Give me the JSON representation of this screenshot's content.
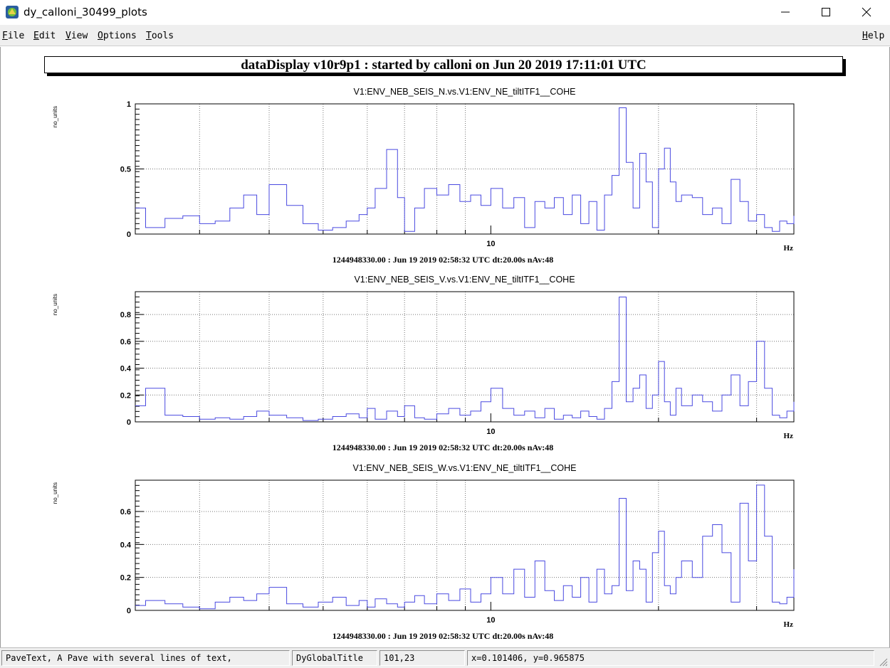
{
  "window": {
    "title": "dy_calloni_30499_plots",
    "controls": {
      "minimize": "minimize-icon",
      "maximize": "maximize-icon",
      "close": "close-icon"
    }
  },
  "menu": {
    "items": [
      "File",
      "Edit",
      "View",
      "Options",
      "Tools"
    ],
    "help": "Help"
  },
  "global_title": "dataDisplay v10r9p1 : started by calloni on Jun 20 2019 17:11:01 UTC",
  "plots": [
    {
      "title": "V1:ENV_NEB_SEIS_N.vs.V1:ENV_NE_tiltITF1__COHE",
      "ylabel": "no_units",
      "xunit": "Hz",
      "yticks": [
        {
          "v": 0,
          "label": "0"
        },
        {
          "v": 0.5,
          "label": "0.5"
        },
        {
          "v": 1,
          "label": "1"
        }
      ],
      "ymax": 1.0,
      "footer": "1244948330.00 : Jun 19 2019 02:58:32 UTC dt:20.00s nAv:48"
    },
    {
      "title": "V1:ENV_NEB_SEIS_V.vs.V1:ENV_NE_tiltITF1__COHE",
      "ylabel": "no_units",
      "xunit": "Hz",
      "yticks": [
        {
          "v": 0,
          "label": "0"
        },
        {
          "v": 0.2,
          "label": "0.2"
        },
        {
          "v": 0.4,
          "label": "0.4"
        },
        {
          "v": 0.6,
          "label": "0.6"
        },
        {
          "v": 0.8,
          "label": "0.8"
        }
      ],
      "ymax": 0.97,
      "footer": "1244948330.00 : Jun 19 2019 02:58:32 UTC dt:20.00s nAv:48"
    },
    {
      "title": "V1:ENV_NEB_SEIS_W.vs.V1:ENV_NE_tiltITF1__COHE",
      "ylabel": "no_units",
      "xunit": "Hz",
      "yticks": [
        {
          "v": 0,
          "label": "0"
        },
        {
          "v": 0.2,
          "label": "0.2"
        },
        {
          "v": 0.4,
          "label": "0.4"
        },
        {
          "v": 0.6,
          "label": "0.6"
        }
      ],
      "ymax": 0.79,
      "footer": "1244948330.00 : Jun 19 2019 02:58:32 UTC dt:20.00s nAv:48"
    }
  ],
  "xaxis": {
    "min": 2.3,
    "max": 35,
    "scale": "log",
    "labeled_tick": "10",
    "grid": true
  },
  "line_color": "#4a4ae0",
  "chart_data": [
    {
      "type": "line",
      "title": "V1:ENV_NEB_SEIS_N.vs.V1:ENV_NE_tiltITF1__COHE",
      "xlabel": "Hz",
      "ylabel": "no_units",
      "xscale": "log",
      "xlim": [
        2.3,
        35
      ],
      "ylim": [
        0,
        1.0
      ],
      "series": [
        {
          "x": [
            2.3,
            2.4,
            2.6,
            2.8,
            3.0,
            3.2,
            3.4,
            3.6,
            3.8,
            4.0,
            4.3,
            4.6,
            4.9,
            5.2,
            5.5,
            5.8,
            6.0,
            6.2,
            6.5,
            6.8,
            7.0,
            7.3,
            7.6,
            8.0,
            8.4,
            8.8,
            9.2,
            9.6,
            10.0,
            10.5,
            11,
            11.5,
            12,
            12.5,
            13,
            13.5,
            14,
            14.5,
            15,
            15.5,
            16,
            16.5,
            17,
            17.5,
            18,
            18.5,
            19,
            19.5,
            20,
            20.5,
            21,
            21.5,
            22,
            23,
            24,
            25,
            26,
            27,
            28,
            29,
            30,
            31,
            32,
            33,
            34,
            35
          ],
          "y": [
            0.2,
            0.05,
            0.12,
            0.14,
            0.08,
            0.1,
            0.2,
            0.3,
            0.15,
            0.38,
            0.22,
            0.08,
            0.03,
            0.05,
            0.1,
            0.15,
            0.2,
            0.35,
            0.65,
            0.28,
            0.02,
            0.2,
            0.35,
            0.3,
            0.38,
            0.25,
            0.3,
            0.22,
            0.35,
            0.2,
            0.28,
            0.05,
            0.25,
            0.2,
            0.28,
            0.15,
            0.3,
            0.08,
            0.25,
            0.03,
            0.3,
            0.45,
            0.97,
            0.55,
            0.2,
            0.62,
            0.4,
            0.05,
            0.5,
            0.66,
            0.4,
            0.25,
            0.3,
            0.28,
            0.15,
            0.2,
            0.08,
            0.42,
            0.25,
            0.1,
            0.15,
            0.05,
            0.02,
            0.1,
            0.08,
            0.14
          ]
        }
      ]
    },
    {
      "type": "line",
      "title": "V1:ENV_NEB_SEIS_V.vs.V1:ENV_NE_tiltITF1__COHE",
      "xlabel": "Hz",
      "ylabel": "no_units",
      "xscale": "log",
      "xlim": [
        2.3,
        35
      ],
      "ylim": [
        0,
        0.97
      ],
      "series": [
        {
          "x": [
            2.3,
            2.4,
            2.6,
            2.8,
            3.0,
            3.2,
            3.4,
            3.6,
            3.8,
            4.0,
            4.3,
            4.6,
            4.9,
            5.2,
            5.5,
            5.8,
            6.0,
            6.2,
            6.5,
            6.8,
            7.0,
            7.3,
            7.6,
            8.0,
            8.4,
            8.8,
            9.2,
            9.6,
            10.0,
            10.5,
            11,
            11.5,
            12,
            12.5,
            13,
            13.5,
            14,
            14.5,
            15,
            15.5,
            16,
            16.5,
            17,
            17.5,
            18,
            18.5,
            19,
            19.5,
            20,
            20.5,
            21,
            21.5,
            22,
            23,
            24,
            25,
            26,
            27,
            28,
            29,
            30,
            31,
            32,
            33,
            34,
            35
          ],
          "y": [
            0.12,
            0.25,
            0.05,
            0.04,
            0.02,
            0.03,
            0.02,
            0.04,
            0.08,
            0.05,
            0.03,
            0.01,
            0.02,
            0.04,
            0.06,
            0.03,
            0.1,
            0.02,
            0.08,
            0.04,
            0.12,
            0.03,
            0.02,
            0.06,
            0.1,
            0.05,
            0.08,
            0.15,
            0.25,
            0.1,
            0.05,
            0.08,
            0.03,
            0.1,
            0.02,
            0.05,
            0.03,
            0.08,
            0.04,
            0.02,
            0.1,
            0.3,
            0.93,
            0.15,
            0.25,
            0.35,
            0.1,
            0.2,
            0.45,
            0.15,
            0.05,
            0.25,
            0.12,
            0.2,
            0.15,
            0.08,
            0.2,
            0.35,
            0.12,
            0.3,
            0.6,
            0.25,
            0.05,
            0.03,
            0.08,
            0.15
          ]
        }
      ]
    },
    {
      "type": "line",
      "title": "V1:ENV_NEB_SEIS_W.vs.V1:ENV_NE_tiltITF1__COHE",
      "xlabel": "Hz",
      "ylabel": "no_units",
      "xscale": "log",
      "xlim": [
        2.3,
        35
      ],
      "ylim": [
        0,
        0.79
      ],
      "series": [
        {
          "x": [
            2.3,
            2.4,
            2.6,
            2.8,
            3.0,
            3.2,
            3.4,
            3.6,
            3.8,
            4.0,
            4.3,
            4.6,
            4.9,
            5.2,
            5.5,
            5.8,
            6.0,
            6.2,
            6.5,
            6.8,
            7.0,
            7.3,
            7.6,
            8.0,
            8.4,
            8.8,
            9.2,
            9.6,
            10.0,
            10.5,
            11,
            11.5,
            12,
            12.5,
            13,
            13.5,
            14,
            14.5,
            15,
            15.5,
            16,
            16.5,
            17,
            17.5,
            18,
            18.5,
            19,
            19.5,
            20,
            20.5,
            21,
            21.5,
            22,
            23,
            24,
            25,
            26,
            27,
            28,
            29,
            30,
            31,
            32,
            33,
            34,
            35
          ],
          "y": [
            0.03,
            0.06,
            0.04,
            0.02,
            0.01,
            0.05,
            0.08,
            0.06,
            0.1,
            0.14,
            0.04,
            0.02,
            0.05,
            0.08,
            0.03,
            0.06,
            0.02,
            0.07,
            0.04,
            0.02,
            0.05,
            0.09,
            0.04,
            0.1,
            0.06,
            0.13,
            0.05,
            0.1,
            0.2,
            0.1,
            0.25,
            0.08,
            0.3,
            0.12,
            0.06,
            0.15,
            0.08,
            0.2,
            0.05,
            0.25,
            0.1,
            0.15,
            0.68,
            0.12,
            0.3,
            0.25,
            0.05,
            0.35,
            0.48,
            0.15,
            0.1,
            0.2,
            0.3,
            0.2,
            0.45,
            0.52,
            0.35,
            0.05,
            0.65,
            0.3,
            0.76,
            0.45,
            0.05,
            0.04,
            0.08,
            0.25
          ]
        }
      ]
    }
  ],
  "status": {
    "object_text": "PaveText, A Pave with several lines of text,",
    "object_name": "DyGlobalTitle",
    "pixel": "101,23",
    "coords": "x=0.101406, y=0.965875"
  }
}
